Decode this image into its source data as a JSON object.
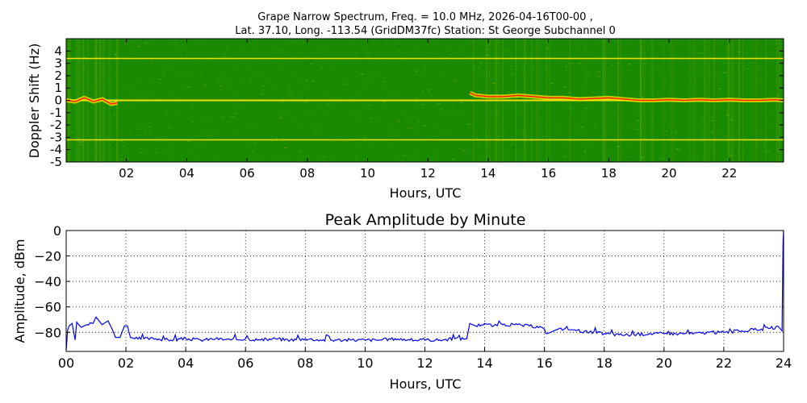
{
  "title_line1": "Grape Narrow Spectrum, Freq. = 10.0 MHz, 2026-04-16T00-00 ,",
  "title_line2": "Lat.  37.10, Long. -113.54 (GridDM37fc) Station: St George Subchannel 0",
  "chart_data": [
    {
      "type": "heatmap",
      "title": "",
      "xlabel": "Hours, UTC",
      "ylabel": "Doppler Shift (Hz)",
      "xlim": [
        0,
        23.8
      ],
      "ylim": [
        -5,
        5
      ],
      "x_ticks": [
        "02",
        "04",
        "06",
        "08",
        "10",
        "12",
        "14",
        "16",
        "18",
        "20",
        "22"
      ],
      "y_ticks": [
        "4",
        "3",
        "2",
        "1",
        "0",
        "-1",
        "-2",
        "-3",
        "-4",
        "-5"
      ],
      "colors": {
        "background": "#1a8a00",
        "mid": "#7fbf00",
        "high": "#ffe600",
        "peak": "#ff2200"
      },
      "constant_lines_hz": [
        3.4,
        0,
        -3.2
      ],
      "doppler_trace": {
        "x": [
          0.0,
          0.3,
          0.6,
          0.9,
          1.2,
          1.5,
          1.7,
          13.4,
          13.6,
          14.0,
          14.5,
          15.0,
          15.5,
          16.0,
          16.5,
          17.0,
          17.5,
          18.0,
          18.5,
          19.0,
          19.5,
          20.0,
          20.5,
          21.0,
          21.5,
          22.0,
          22.5,
          23.0,
          23.5,
          23.8
        ],
        "y": [
          0.0,
          -0.1,
          0.2,
          -0.1,
          0.1,
          -0.3,
          -0.2,
          0.6,
          0.4,
          0.3,
          0.3,
          0.4,
          0.3,
          0.2,
          0.2,
          0.1,
          0.15,
          0.2,
          0.1,
          0.0,
          0.0,
          0.05,
          0.0,
          0.05,
          0.0,
          0.05,
          0.0,
          0.0,
          0.05,
          0.0
        ]
      },
      "grid": false
    },
    {
      "type": "line",
      "title": "Peak Amplitude by Minute",
      "xlabel": "Hours, UTC",
      "ylabel": "Amplitude, dBm",
      "xlim": [
        0,
        24
      ],
      "ylim": [
        -95,
        0
      ],
      "x_ticks": [
        "00",
        "02",
        "04",
        "06",
        "08",
        "10",
        "12",
        "14",
        "16",
        "18",
        "20",
        "22",
        "24"
      ],
      "y_ticks": [
        "0",
        "−20",
        "−40",
        "−60",
        "−80"
      ],
      "grid": true,
      "color": "#0000ff",
      "series": [
        {
          "x": [
            0.0,
            0.05,
            0.1,
            0.2,
            0.3,
            0.35,
            0.5,
            0.7,
            0.9,
            1.0,
            1.2,
            1.4,
            1.55,
            1.65,
            1.8,
            1.95,
            2.05,
            2.15,
            2.3,
            2.6,
            3.0,
            3.5,
            4.0,
            4.5,
            5.0,
            5.5,
            6.0,
            6.5,
            7.0,
            7.5,
            8.0,
            8.5,
            9.0,
            9.5,
            10.0,
            10.5,
            11.0,
            11.5,
            12.0,
            12.5,
            13.0,
            13.4,
            13.5,
            13.7,
            14.0,
            14.3,
            14.6,
            15.0,
            15.5,
            15.9,
            16.1,
            16.3,
            16.5,
            16.8,
            17.0,
            17.5,
            18.0,
            18.5,
            19.0,
            19.5,
            20.0,
            20.5,
            21.0,
            21.5,
            22.0,
            22.5,
            23.0,
            23.5,
            23.85,
            23.95,
            23.98,
            24.0
          ],
          "y": [
            -94,
            -78,
            -75,
            -73,
            -86,
            -72,
            -76,
            -74,
            -73,
            -68,
            -74,
            -71,
            -78,
            -84,
            -84,
            -75,
            -75,
            -84,
            -85,
            -85,
            -85,
            -86,
            -85,
            -86,
            -85,
            -86,
            -85,
            -86,
            -85,
            -86,
            -85,
            -86,
            -86,
            -86,
            -86,
            -86,
            -85,
            -86,
            -86,
            -86,
            -85,
            -85,
            -73,
            -75,
            -73,
            -75,
            -74,
            -74,
            -75,
            -76,
            -81,
            -79,
            -77,
            -78,
            -78,
            -80,
            -81,
            -82,
            -82,
            -81,
            -81,
            -81,
            -81,
            -80,
            -80,
            -79,
            -78,
            -77,
            -76,
            -79,
            -10,
            0
          ]
        }
      ]
    }
  ]
}
